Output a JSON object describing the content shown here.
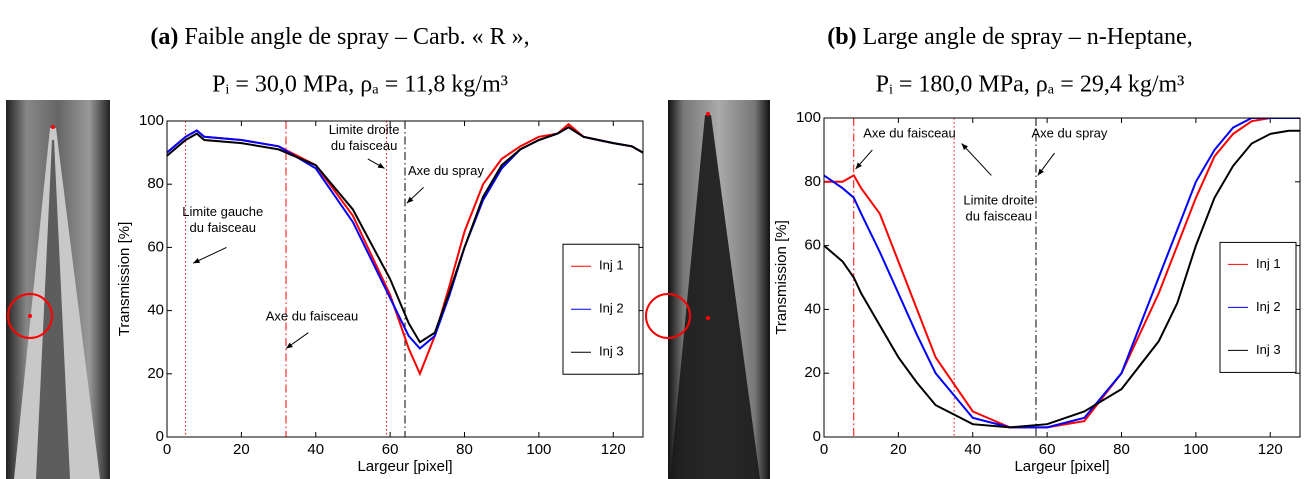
{
  "chart_data": [
    {
      "type": "line",
      "panel_label": "(a)",
      "title": "Faible angle de spray – Carb. « R »,",
      "subtitle": "Pᵢ = 30,0 MPa, ρₐ = 11,8 kg/m³",
      "x_label": "Largeur [pixel]",
      "y_label": "Transmission [%]",
      "x": [
        0,
        5,
        8,
        10,
        20,
        30,
        40,
        50,
        60,
        65,
        68,
        72,
        76,
        80,
        85,
        90,
        95,
        100,
        105,
        108,
        112,
        116,
        120,
        125,
        128
      ],
      "series": [
        {
          "name": "Inj 1",
          "color": "#ff0000",
          "values": [
            90,
            95,
            97,
            95,
            94,
            92,
            86,
            70,
            45,
            28,
            20,
            32,
            48,
            65,
            80,
            88,
            92,
            95,
            96,
            99,
            95,
            94,
            93,
            92,
            90
          ]
        },
        {
          "name": "Inj 2",
          "color": "#0000ff",
          "values": [
            90,
            95,
            97,
            95,
            94,
            92,
            85,
            68,
            44,
            32,
            28,
            32,
            45,
            60,
            75,
            85,
            91,
            94,
            96,
            98,
            95,
            94,
            93,
            92,
            90
          ]
        },
        {
          "name": "Inj 3",
          "color": "#000000",
          "values": [
            89,
            94,
            96,
            94,
            93,
            91,
            86,
            72,
            50,
            36,
            30,
            33,
            46,
            60,
            76,
            86,
            91,
            94,
            96,
            98,
            95,
            94,
            93,
            92,
            90
          ]
        }
      ],
      "vlines": [
        {
          "x": 5,
          "color": "#ff0000",
          "style": "dotted"
        },
        {
          "x": 32,
          "color": "#ff0000",
          "style": "dashdot"
        },
        {
          "x": 59,
          "color": "#ff0000",
          "style": "dotted"
        },
        {
          "x": 64,
          "color": "#000000",
          "style": "dashdot"
        }
      ],
      "annotations": [
        {
          "lines": [
            "Limite gauche",
            "du faisceau"
          ]
        },
        {
          "lines": [
            "Axe du faisceau"
          ]
        },
        {
          "lines": [
            "Limite droite",
            "du faisceau"
          ]
        },
        {
          "lines": [
            "Axe du spray"
          ]
        }
      ],
      "xlim": [
        0,
        128
      ],
      "ylim": [
        0,
        100
      ],
      "xticks": [
        0,
        20,
        40,
        60,
        80,
        100,
        120
      ],
      "yticks": [
        0,
        20,
        40,
        60,
        80,
        100
      ],
      "legend": "right"
    },
    {
      "type": "line",
      "panel_label": "(b)",
      "title": "Large angle de spray – n-Heptane,",
      "subtitle": "Pᵢ = 180,0 MPa, ρₐ = 29,4 kg/m³",
      "x_label": "Largeur [pixel]",
      "y_label": "Transmission [%]",
      "x": [
        0,
        5,
        8,
        10,
        15,
        20,
        25,
        30,
        40,
        50,
        60,
        70,
        80,
        90,
        95,
        100,
        105,
        110,
        115,
        120,
        125,
        128
      ],
      "series": [
        {
          "name": "Inj 1",
          "color": "#ff0000",
          "values": [
            80,
            80,
            82,
            78,
            70,
            55,
            40,
            25,
            8,
            3,
            3,
            5,
            20,
            45,
            60,
            75,
            88,
            95,
            99,
            100,
            100,
            100
          ]
        },
        {
          "name": "Inj 2",
          "color": "#0000ff",
          "values": [
            82,
            78,
            75,
            70,
            58,
            45,
            32,
            20,
            6,
            3,
            3,
            6,
            20,
            50,
            65,
            80,
            90,
            97,
            100,
            100,
            100,
            100
          ]
        },
        {
          "name": "Inj 3",
          "color": "#000000",
          "values": [
            60,
            55,
            50,
            45,
            35,
            25,
            17,
            10,
            4,
            3,
            4,
            8,
            15,
            30,
            42,
            60,
            75,
            85,
            92,
            95,
            96,
            96
          ]
        }
      ],
      "vlines": [
        {
          "x": 8,
          "color": "#ff0000",
          "style": "dashdot"
        },
        {
          "x": 35,
          "color": "#ff0000",
          "style": "dotted"
        },
        {
          "x": 57,
          "color": "#000000",
          "style": "dashdot"
        }
      ],
      "annotations": [
        {
          "lines": [
            "Axe du faisceau"
          ]
        },
        {
          "lines": [
            "Limite droite",
            "du faisceau"
          ]
        },
        {
          "lines": [
            "Axe du spray"
          ]
        }
      ],
      "xlim": [
        0,
        128
      ],
      "ylim": [
        0,
        100
      ],
      "xticks": [
        0,
        20,
        40,
        60,
        80,
        100,
        120
      ],
      "yticks": [
        0,
        20,
        40,
        60,
        80,
        100
      ],
      "legend": "right"
    }
  ]
}
